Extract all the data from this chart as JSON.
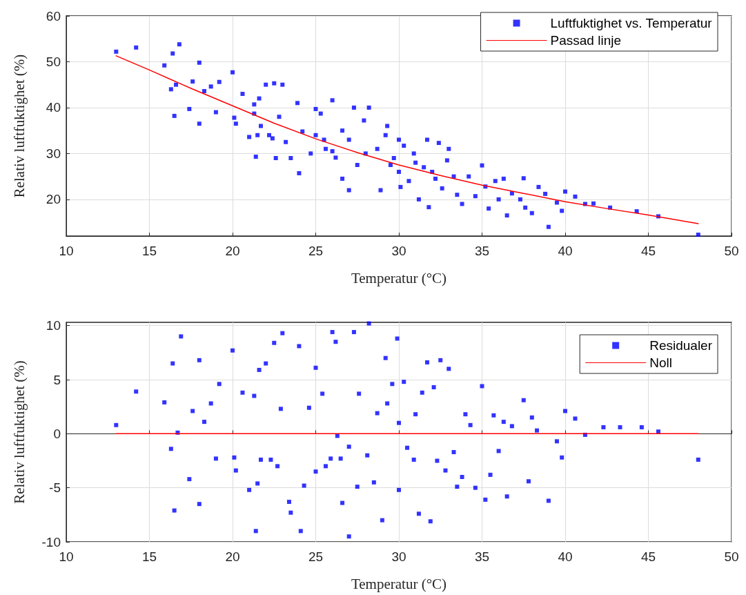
{
  "chart_data": [
    {
      "type": "scatter",
      "xlabel": "Temperatur (°C)",
      "ylabel": "Relativ luftfuktighet (%)",
      "xlim": [
        10,
        50
      ],
      "xticks": [
        10,
        15,
        20,
        25,
        30,
        35,
        40,
        45,
        50
      ],
      "ylim": [
        12,
        60
      ],
      "yticks": [
        20,
        30,
        40,
        50,
        60
      ],
      "grid": true,
      "legend": "top right",
      "marker": "square",
      "series": [
        {
          "name": "Luftfuktighet vs. Temperatur",
          "color": "#0000ff",
          "x": [
            13,
            14.2,
            15.9,
            16.3,
            16.4,
            16.5,
            16.6,
            16.8,
            17.4,
            17.6,
            18,
            18,
            18.3,
            18.7,
            19,
            19.2,
            20,
            20.1,
            20.2,
            20.6,
            21,
            21.3,
            21.3,
            21.4,
            21.5,
            21.6,
            21.7,
            22,
            22.2,
            22.4,
            22.5,
            22.6,
            22.8,
            23,
            23.2,
            23.5,
            23.9,
            24,
            24.2,
            24.7,
            25,
            25,
            25.3,
            25.5,
            25.6,
            26,
            26,
            26.2,
            26.6,
            26.6,
            27,
            27,
            27.3,
            27.5,
            27.9,
            28.2,
            28,
            28.7,
            28.9,
            29.2,
            29.3,
            29.5,
            29.7,
            30,
            30,
            30.1,
            30.3,
            30.6,
            30.9,
            31,
            31.2,
            31.5,
            31.7,
            31.8,
            32,
            32.2,
            32.4,
            32.6,
            32.9,
            33,
            33.3,
            33.5,
            33.8,
            34.2,
            34.6,
            35,
            35.2,
            35.4,
            35.8,
            36,
            36.3,
            36.5,
            36.8,
            37.3,
            37.5,
            37.6,
            38,
            38.4,
            38.8,
            39,
            39.5,
            39.8,
            40,
            40.6,
            41.2,
            41.7,
            42.7,
            44.3,
            45.6,
            48
          ],
          "values": [
            52.2,
            53.1,
            49.2,
            44,
            51.8,
            38.2,
            45,
            53.8,
            39.7,
            45.7,
            49.8,
            36.5,
            43.6,
            44.6,
            39,
            45.6,
            47.7,
            37.8,
            36.5,
            43,
            33.6,
            40.7,
            38.7,
            29.3,
            34,
            42,
            36,
            45,
            34,
            33.3,
            45.3,
            29,
            38,
            45,
            32.5,
            29,
            41,
            25.7,
            34.8,
            30,
            34,
            39.7,
            38.7,
            33,
            31,
            30.5,
            41.6,
            29.1,
            35,
            24.5,
            33,
            22,
            40,
            27.5,
            37.2,
            40,
            30,
            31,
            22,
            34,
            36,
            27.5,
            29,
            33,
            26,
            22.7,
            31.7,
            24,
            30,
            28,
            20,
            27,
            33,
            18.3,
            26,
            24.5,
            32.3,
            22.4,
            28.5,
            31,
            25,
            21,
            19,
            25,
            20.7,
            27.4,
            22.8,
            18,
            24,
            20,
            24.5,
            16.5,
            21.3,
            20,
            24.6,
            18.2,
            17,
            22.7,
            21.2,
            14,
            19.3,
            17.5,
            21.7,
            20.6,
            19,
            19.1,
            18.2,
            17.4,
            16.3,
            12.3
          ]
        },
        {
          "name": "Passad linje",
          "type": "line",
          "marker": "none",
          "color": "#ff0000",
          "x": [
            13,
            15,
            17.5,
            20,
            22.5,
            25,
            27.5,
            30,
            32.5,
            35,
            37.5,
            40,
            42.5,
            45,
            48
          ],
          "values": [
            51.3,
            48.2,
            44.2,
            40.4,
            36.6,
            33.2,
            30.2,
            27.5,
            25.2,
            23.1,
            21.3,
            19.5,
            18,
            16.6,
            14.7
          ]
        }
      ]
    },
    {
      "type": "scatter",
      "xlabel": "Temperatur (°C)",
      "ylabel": "Relativ luftfuktighet (%)",
      "xlim": [
        10,
        50
      ],
      "xticks": [
        10,
        15,
        20,
        25,
        30,
        35,
        40,
        45,
        50
      ],
      "ylim": [
        -10,
        10.3
      ],
      "yticks": [
        -10,
        -5,
        0,
        5,
        10
      ],
      "grid": true,
      "legend": "top right",
      "marker": "square",
      "series": [
        {
          "name": "Residualer",
          "color": "#0000ff",
          "x": [
            13,
            14.2,
            15.9,
            16.3,
            16.4,
            16.5,
            16.7,
            16.9,
            17.4,
            17.6,
            18,
            18,
            18.3,
            18.7,
            19,
            19.2,
            20,
            20.1,
            20.2,
            20.6,
            21,
            21.3,
            21.4,
            21.5,
            21.6,
            21.7,
            22,
            22.3,
            22.5,
            22.7,
            22.9,
            23,
            23.4,
            23.5,
            24,
            24.1,
            24.3,
            24.6,
            25,
            25,
            25.4,
            25.6,
            25.9,
            26,
            26.2,
            26.3,
            26.5,
            26.6,
            27,
            27,
            27.3,
            27.5,
            27.6,
            28.1,
            28.2,
            28.5,
            28.7,
            29,
            29.2,
            29.3,
            29.6,
            29.9,
            30,
            30,
            30.3,
            30.5,
            30.9,
            31,
            31.2,
            31.4,
            31.7,
            31.9,
            32.1,
            32.3,
            32.5,
            32.8,
            33,
            33.3,
            33.5,
            33.8,
            34,
            34.3,
            34.6,
            35,
            35.2,
            35.5,
            35.7,
            36,
            36.3,
            36.5,
            36.8,
            37.5,
            37.8,
            38,
            38.3,
            39,
            39.5,
            39.8,
            40,
            40.6,
            41.2,
            42.3,
            43.3,
            44.6,
            45.6,
            48
          ],
          "values": [
            0.8,
            3.9,
            2.9,
            -1.4,
            6.5,
            -7.1,
            0.1,
            9,
            -4.2,
            2.1,
            6.8,
            -6.5,
            1.1,
            2.8,
            -2.3,
            4.6,
            7.7,
            -2.2,
            -3.4,
            3.8,
            -5.2,
            3.5,
            -9,
            -4.6,
            5.9,
            -2.4,
            6.5,
            -2.4,
            8.4,
            -3,
            2.3,
            9.3,
            -6.3,
            -7.3,
            8.1,
            -9,
            -4.8,
            2.4,
            -3.5,
            6.1,
            3.7,
            -3,
            -2.3,
            9.4,
            8.5,
            -0.2,
            -2.3,
            -6.4,
            -1.2,
            -9.5,
            9.4,
            -4.9,
            3.7,
            -2,
            10.2,
            -4.5,
            1.9,
            -8,
            7,
            2.8,
            4.6,
            8.8,
            -5.2,
            1,
            4.8,
            -1.3,
            -2.4,
            1.8,
            -7.4,
            3.8,
            6.6,
            -8.1,
            4.3,
            -2.5,
            6.8,
            -3.4,
            6,
            -1.7,
            -4.9,
            -4,
            1.8,
            0.8,
            -5,
            4.4,
            -6.1,
            -3.8,
            1.7,
            -1.6,
            1.1,
            -5.8,
            0.7,
            3.1,
            -4.4,
            1.5,
            0.3,
            -6.2,
            -0.7,
            -2.2,
            2.1,
            1.4,
            -0.1,
            0.6,
            0.6,
            0.6,
            0.2,
            -2.4
          ]
        },
        {
          "name": "Noll",
          "type": "line",
          "marker": "none",
          "color": "#ff0000",
          "x": [
            13,
            48
          ],
          "values": [
            0,
            0
          ]
        }
      ]
    }
  ]
}
